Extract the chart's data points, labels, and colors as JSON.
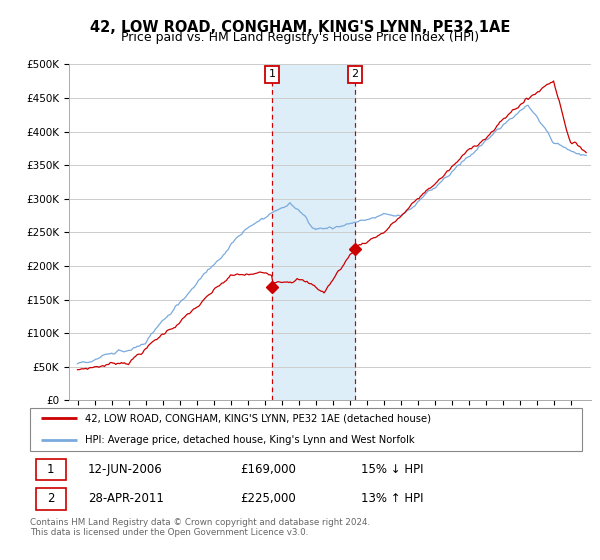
{
  "title": "42, LOW ROAD, CONGHAM, KING'S LYNN, PE32 1AE",
  "subtitle": "Price paid vs. HM Land Registry's House Price Index (HPI)",
  "ylim": [
    0,
    500000
  ],
  "yticks": [
    0,
    50000,
    100000,
    150000,
    200000,
    250000,
    300000,
    350000,
    400000,
    450000,
    500000
  ],
  "ytick_labels": [
    "£0",
    "£50K",
    "£100K",
    "£150K",
    "£200K",
    "£250K",
    "£300K",
    "£350K",
    "£400K",
    "£450K",
    "£500K"
  ],
  "sale1_date": 2006.44,
  "sale1_price": 169000,
  "sale1_label": "1",
  "sale2_date": 2011.32,
  "sale2_price": 225000,
  "sale2_label": "2",
  "house_color": "#cc0000",
  "hpi_color": "#7aaadd",
  "shade_color": "#ddeef8",
  "background_color": "#ffffff",
  "grid_color": "#cccccc",
  "legend_entry1": "42, LOW ROAD, CONGHAM, KING'S LYNN, PE32 1AE (detached house)",
  "legend_entry2": "HPI: Average price, detached house, King's Lynn and West Norfolk",
  "table_row1": [
    "1",
    "12-JUN-2006",
    "£169,000",
    "15% ↓ HPI"
  ],
  "table_row2": [
    "2",
    "28-APR-2011",
    "£225,000",
    "13% ↑ HPI"
  ],
  "footnote": "Contains HM Land Registry data © Crown copyright and database right 2024.\nThis data is licensed under the Open Government Licence v3.0.",
  "xlim_start": 1994.5,
  "xlim_end": 2025.2,
  "shade_x1_start": 2006.44,
  "shade_x1_end": 2011.32,
  "title_fontsize": 10.5,
  "subtitle_fontsize": 9,
  "tick_fontsize": 7.5
}
